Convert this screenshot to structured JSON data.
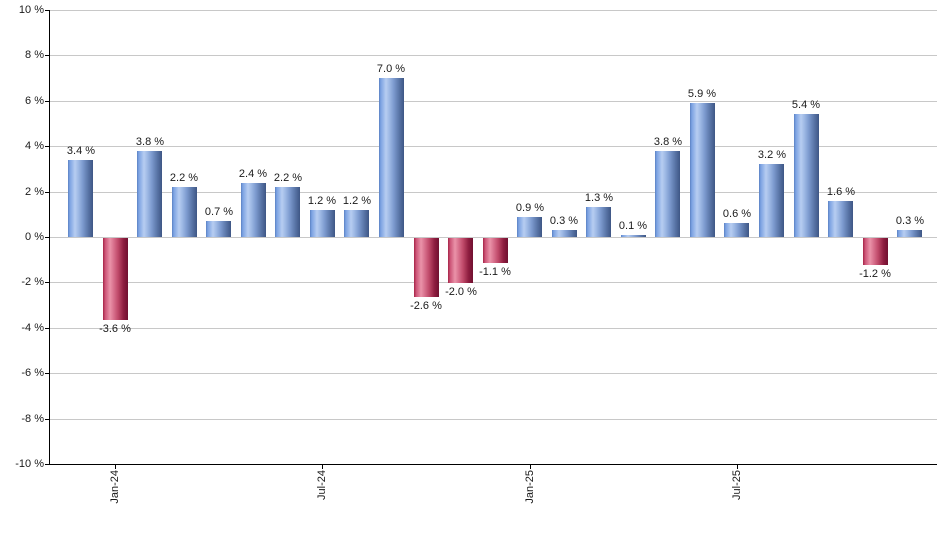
{
  "chart_data": {
    "type": "bar",
    "title": "",
    "xlabel": "",
    "ylabel": "",
    "ylim": [
      -10,
      10
    ],
    "grid": "horizontal-light-gray",
    "legend": "none",
    "values": [
      3.4,
      -3.6,
      3.8,
      2.2,
      0.7,
      2.4,
      2.2,
      1.2,
      1.2,
      7.0,
      -2.6,
      -2.0,
      -1.1,
      0.9,
      0.3,
      1.3,
      0.1,
      3.8,
      5.9,
      0.6,
      3.2,
      5.4,
      1.6,
      -1.2,
      0.3
    ],
    "value_labels": [
      "3.4 %",
      "-3.6 %",
      "3.8 %",
      "2.2 %",
      "0.7 %",
      "2.4 %",
      "2.2 %",
      "1.2 %",
      "1.2 %",
      "7.0 %",
      "-2.6 %",
      "-2.0 %",
      "-1.1 %",
      "0.9 %",
      "0.3 %",
      "1.3 %",
      "0.1 %",
      "3.8 %",
      "5.9 %",
      "0.6 %",
      "3.2 %",
      "5.4 %",
      "1.6 %",
      "-1.2 %",
      "0.3 %"
    ],
    "y_tick_values": [
      10,
      8,
      6,
      4,
      2,
      0,
      -2,
      -4,
      -6,
      -8,
      -10
    ],
    "y_tick_labels": [
      "10 %",
      "8 %",
      "6 %",
      "4 %",
      "2 %",
      "0 %",
      "-2 %",
      "-4 %",
      "-6 %",
      "-8 %",
      "-10 %"
    ],
    "x_ticks": [
      {
        "bar_index": 1,
        "label": "Jan-24"
      },
      {
        "bar_index": 7,
        "label": "Jul-24"
      },
      {
        "bar_index": 13,
        "label": "Jan-25"
      },
      {
        "bar_index": 19,
        "label": "Jul-25"
      }
    ],
    "colors": {
      "positive_bar": "#7ba2e2",
      "positive_bar_dark": "#3e5685",
      "negative_bar": "#cc5577",
      "negative_bar_dark": "#701030",
      "gridline": "#c8c8c8",
      "axis": "#000000",
      "label_text": "#1a1a1a",
      "background": "#ffffff"
    }
  }
}
